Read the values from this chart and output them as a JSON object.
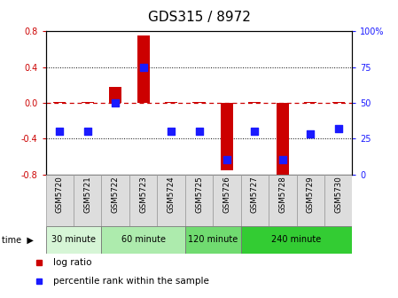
{
  "title": "GDS315 / 8972",
  "samples": [
    "GSM5720",
    "GSM5721",
    "GSM5722",
    "GSM5723",
    "GSM5724",
    "GSM5725",
    "GSM5726",
    "GSM5727",
    "GSM5728",
    "GSM5729",
    "GSM5730"
  ],
  "log_ratio": [
    0.0,
    0.0,
    0.18,
    0.75,
    0.0,
    0.0,
    -0.75,
    0.0,
    -0.82,
    0.0,
    0.0
  ],
  "percentile": [
    30,
    30,
    50,
    75,
    30,
    30,
    10,
    30,
    10,
    28,
    32
  ],
  "ylim": [
    -0.8,
    0.8
  ],
  "yticks": [
    -0.8,
    -0.4,
    0.0,
    0.4,
    0.8
  ],
  "right_yticks": [
    0,
    25,
    50,
    75,
    100
  ],
  "right_ytick_labels": [
    "0",
    "25",
    "50",
    "75",
    "100%"
  ],
  "bar_color": "#cc0000",
  "dot_color": "#1a1aff",
  "zero_line_color": "#cc0000",
  "groups": [
    {
      "label": "30 minute",
      "start": 0,
      "end": 1,
      "color": "#d6f5d6"
    },
    {
      "label": "60 minute",
      "start": 2,
      "end": 4,
      "color": "#adebad"
    },
    {
      "label": "120 minute",
      "start": 5,
      "end": 6,
      "color": "#70db70"
    },
    {
      "label": "240 minute",
      "start": 7,
      "end": 10,
      "color": "#33cc33"
    }
  ],
  "tick_label_fontsize": 7,
  "title_fontsize": 11,
  "legend_fontsize": 7.5,
  "bar_width": 0.45,
  "dot_size": 35
}
